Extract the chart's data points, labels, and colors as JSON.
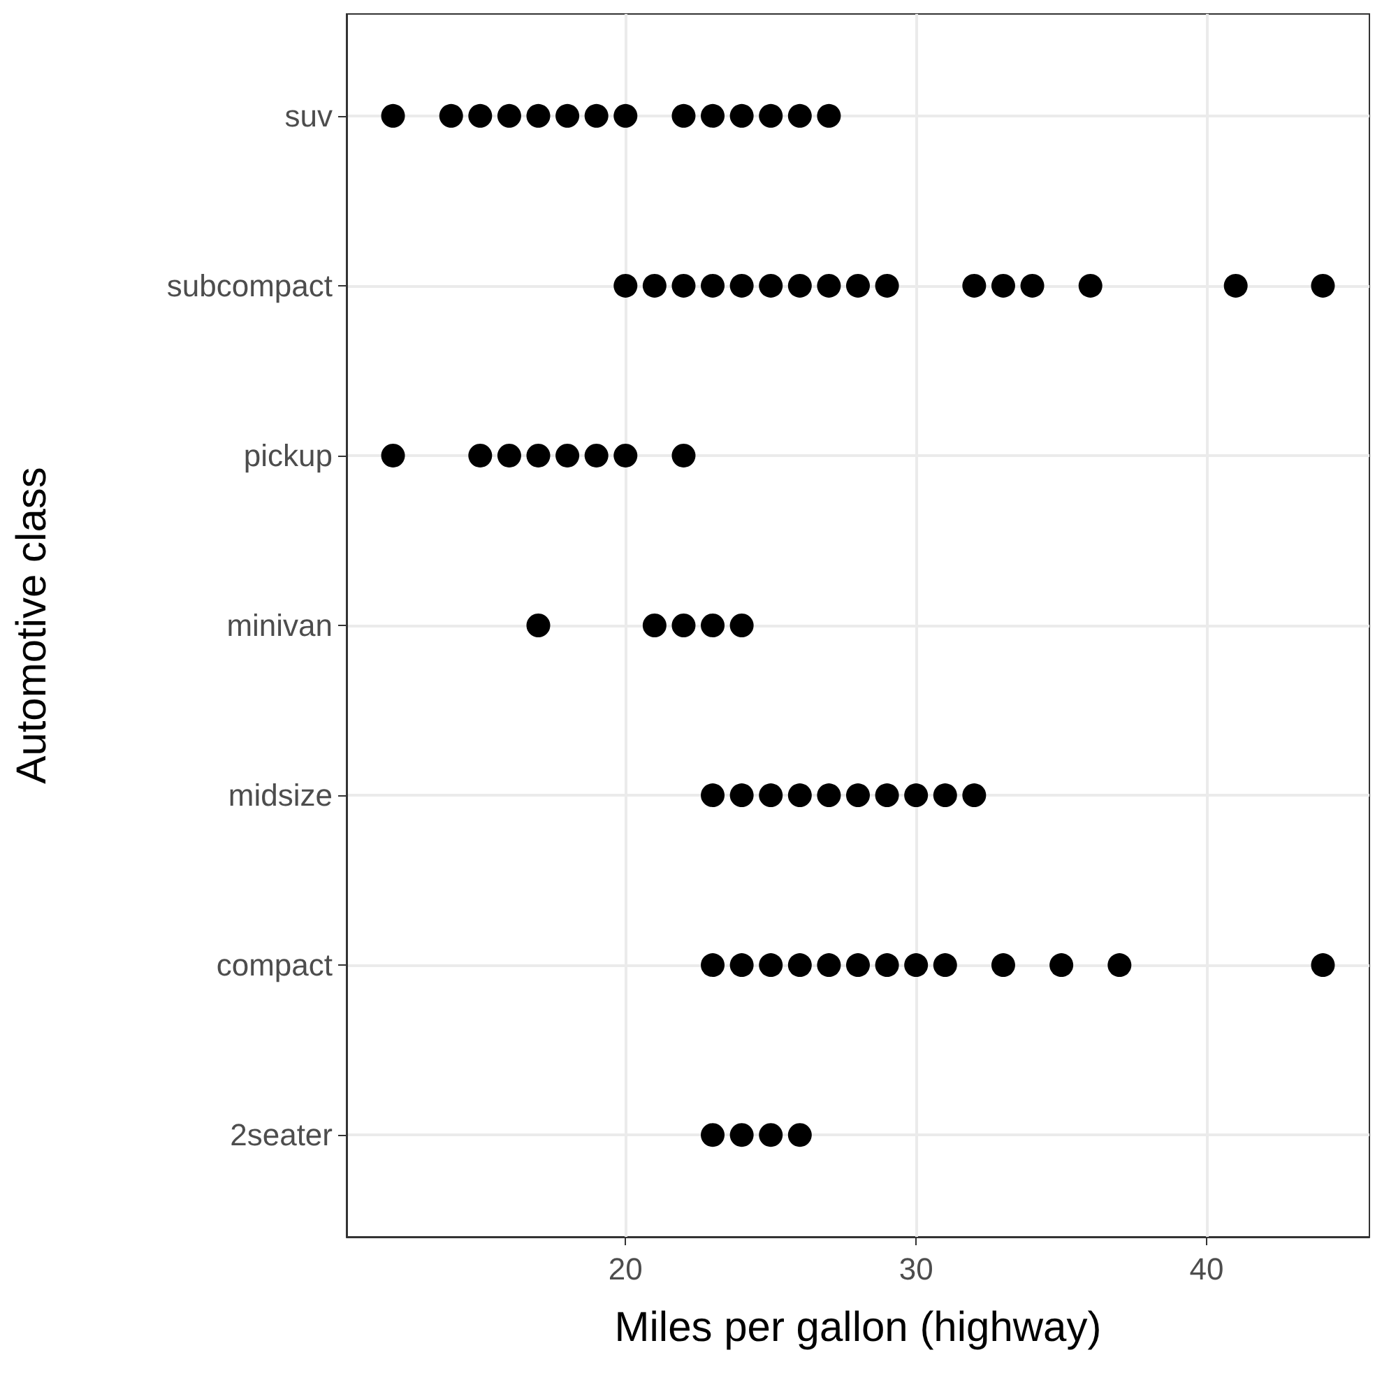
{
  "chart_data": {
    "type": "scatter",
    "orientation": "horizontal",
    "xlabel": "Miles per gallon (highway)",
    "ylabel": "Automotive class",
    "categories": [
      "suv",
      "subcompact",
      "pickup",
      "minivan",
      "midsize",
      "compact",
      "2seater"
    ],
    "series": [
      {
        "color": "#000000",
        "values": [
          12,
          14,
          15,
          16,
          17,
          18,
          19,
          20,
          22,
          23,
          24,
          25,
          26,
          27
        ],
        "x": [
          "suv",
          "suv",
          "suv",
          "suv",
          "suv",
          "suv",
          "suv",
          "suv",
          "suv",
          "suv",
          "suv",
          "suv",
          "suv",
          "suv"
        ]
      },
      {
        "color": "#000000",
        "values": [
          20,
          21,
          22,
          23,
          24,
          25,
          26,
          27,
          28,
          29,
          32,
          33,
          34,
          36,
          41,
          44
        ],
        "x": [
          "subcompact",
          "subcompact",
          "subcompact",
          "subcompact",
          "subcompact",
          "subcompact",
          "subcompact",
          "subcompact",
          "subcompact",
          "subcompact",
          "subcompact",
          "subcompact",
          "subcompact",
          "subcompact",
          "subcompact",
          "subcompact"
        ]
      },
      {
        "color": "#000000",
        "values": [
          12,
          15,
          16,
          17,
          18,
          19,
          20,
          22
        ],
        "x": [
          "pickup",
          "pickup",
          "pickup",
          "pickup",
          "pickup",
          "pickup",
          "pickup",
          "pickup"
        ]
      },
      {
        "color": "#000000",
        "values": [
          17,
          21,
          22,
          23,
          24
        ],
        "x": [
          "minivan",
          "minivan",
          "minivan",
          "minivan",
          "minivan"
        ]
      },
      {
        "color": "#000000",
        "values": [
          23,
          24,
          25,
          26,
          27,
          28,
          29,
          30,
          31,
          32
        ],
        "x": [
          "midsize",
          "midsize",
          "midsize",
          "midsize",
          "midsize",
          "midsize",
          "midsize",
          "midsize",
          "midsize",
          "midsize"
        ]
      },
      {
        "color": "#000000",
        "values": [
          23,
          24,
          25,
          26,
          27,
          28,
          29,
          30,
          31,
          33,
          35,
          37,
          44
        ],
        "x": [
          "compact",
          "compact",
          "compact",
          "compact",
          "compact",
          "compact",
          "compact",
          "compact",
          "compact",
          "compact",
          "compact",
          "compact",
          "compact"
        ]
      },
      {
        "color": "#000000",
        "values": [
          23,
          24,
          25,
          26
        ],
        "x": [
          "2seater",
          "2seater",
          "2seater",
          "2seater"
        ]
      }
    ],
    "xlim": [
      10.4,
      45.6
    ],
    "xticks": [
      20,
      30,
      40
    ],
    "grid": true,
    "marker": "circle"
  }
}
